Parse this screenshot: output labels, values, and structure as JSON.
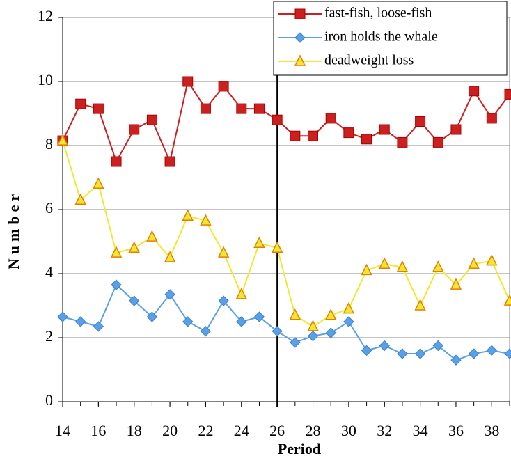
{
  "chart_data": {
    "type": "line",
    "xlabel": "Period",
    "ylabel": "Number",
    "x": [
      14,
      15,
      16,
      17,
      18,
      19,
      20,
      21,
      22,
      23,
      24,
      25,
      26,
      27,
      28,
      29,
      30,
      31,
      32,
      33,
      34,
      35,
      36,
      37,
      38,
      39
    ],
    "series": [
      {
        "name": "fast-fish, loose-fish",
        "color": "#cc1f1f",
        "marker": "square",
        "values": [
          8.15,
          9.3,
          9.15,
          7.5,
          8.5,
          8.8,
          7.5,
          10.0,
          9.15,
          9.85,
          9.15,
          9.15,
          8.8,
          8.3,
          8.3,
          8.85,
          8.4,
          8.2,
          8.5,
          8.1,
          8.75,
          8.1,
          8.5,
          9.7,
          8.85,
          9.6
        ]
      },
      {
        "name": "iron holds the whale",
        "color": "#5aa0e6",
        "marker": "diamond",
        "values": [
          2.65,
          2.5,
          2.35,
          3.65,
          3.15,
          2.65,
          3.35,
          2.5,
          2.2,
          3.15,
          2.5,
          2.65,
          2.2,
          1.85,
          2.05,
          2.15,
          2.5,
          1.6,
          1.75,
          1.5,
          1.5,
          1.75,
          1.3,
          1.5,
          1.6,
          1.5
        ]
      },
      {
        "name": "deadweight loss",
        "color": "#f0e830",
        "marker": "triangle",
        "values": [
          8.15,
          6.3,
          6.8,
          4.65,
          4.8,
          5.15,
          4.5,
          5.8,
          5.65,
          4.65,
          3.35,
          4.95,
          4.8,
          2.7,
          2.35,
          2.7,
          2.9,
          4.1,
          4.3,
          4.2,
          3.0,
          4.2,
          3.65,
          4.3,
          4.4,
          3.15
        ]
      }
    ],
    "xlim": [
      14,
      39
    ],
    "xticks": [
      14,
      16,
      18,
      20,
      22,
      24,
      26,
      28,
      30,
      32,
      34,
      36,
      38
    ],
    "ylim": [
      0,
      12
    ],
    "yticks": [
      0,
      2,
      4,
      6,
      8,
      10,
      12
    ],
    "grid": true,
    "vline": 26,
    "legend": "upper right"
  }
}
